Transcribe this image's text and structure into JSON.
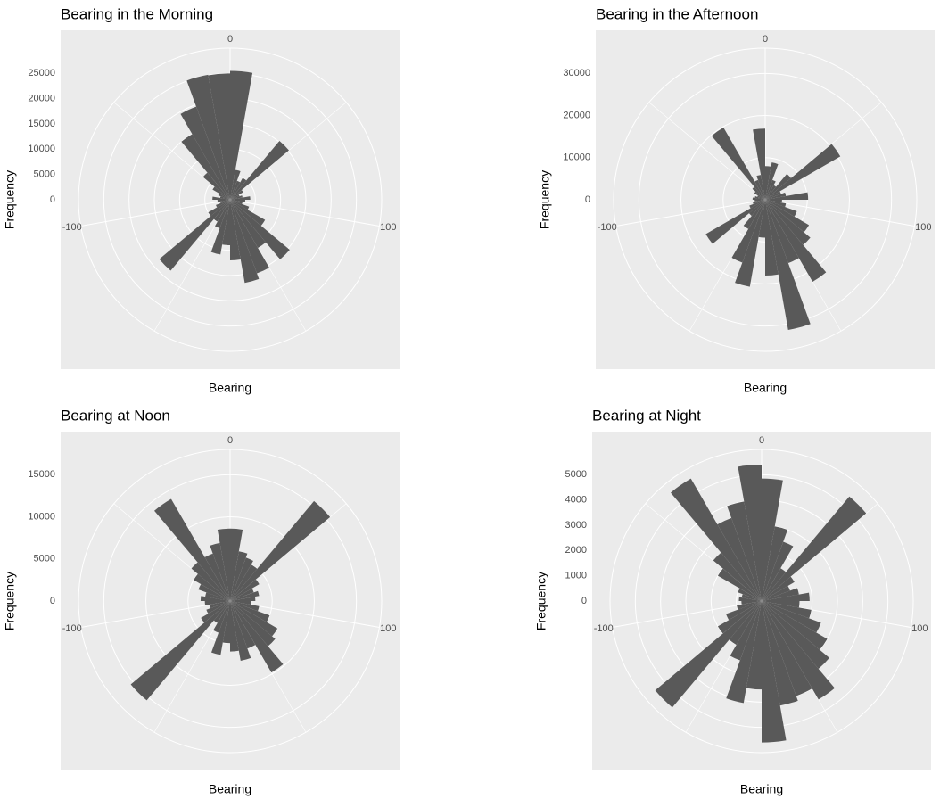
{
  "chart_data": [
    {
      "type": "polar-histogram",
      "title": "Bearing in the Morning",
      "xlabel": "Bearing",
      "ylabel": "Frequency",
      "color": "#595959",
      "bins": [
        -180,
        -170,
        -160,
        -150,
        -140,
        -130,
        -120,
        -110,
        -100,
        -90,
        -80,
        -70,
        -60,
        -50,
        -40,
        -30,
        -20,
        -10,
        0,
        10,
        20,
        30,
        40,
        50,
        60,
        70,
        80,
        90,
        100,
        110,
        120,
        130,
        140,
        150,
        160,
        170,
        180
      ],
      "values": [
        9000,
        11000,
        6000,
        5000,
        18300,
        5000,
        3000,
        2000,
        2500,
        3500,
        2000,
        2500,
        4000,
        7000,
        15000,
        19600,
        25100,
        25000,
        25500,
        6000,
        4000,
        5000,
        15200,
        3000,
        2000,
        2500,
        4000,
        3000,
        2500,
        4000,
        8000,
        15400,
        11000,
        15500,
        16700,
        12000
      ],
      "xlim": [
        -180,
        180
      ],
      "xticks": [
        -100,
        0,
        100
      ],
      "x_minor_ticks": [
        -150,
        -50,
        50,
        150
      ],
      "ylim": [
        0,
        30000
      ],
      "yticks": [
        0,
        5000,
        10000,
        15000,
        20000,
        25000
      ]
    },
    {
      "type": "polar-histogram",
      "title": "Bearing in the Afternoon",
      "xlabel": "Bearing",
      "ylabel": "Frequency",
      "color": "#595959",
      "bins": [
        -180,
        -170,
        -160,
        -150,
        -140,
        -130,
        -120,
        -110,
        -100,
        -90,
        -80,
        -70,
        -60,
        -50,
        -40,
        -30,
        -20,
        -10,
        0,
        10,
        20,
        30,
        40,
        50,
        60,
        70,
        80,
        90,
        100,
        110,
        120,
        130,
        140,
        150,
        160,
        170,
        180
      ],
      "values": [
        9000,
        21000,
        15900,
        8000,
        5000,
        16300,
        4000,
        3000,
        2500,
        3000,
        2500,
        2000,
        3000,
        4000,
        19800,
        5000,
        6000,
        16900,
        8000,
        9000,
        5000,
        4000,
        8000,
        20600,
        4000,
        5000,
        10200,
        4000,
        5000,
        8000,
        12000,
        14000,
        22500,
        16000,
        31400,
        18000
      ],
      "xlim": [
        -180,
        180
      ],
      "xticks": [
        -100,
        0,
        100
      ],
      "x_minor_ticks": [
        -150,
        -50,
        50,
        150
      ],
      "ylim": [
        0,
        36000
      ],
      "yticks": [
        0,
        10000,
        20000,
        30000
      ]
    },
    {
      "type": "polar-histogram",
      "title": "Bearing at Noon",
      "xlabel": "Bearing",
      "ylabel": "Frequency",
      "color": "#595959",
      "bins": [
        -180,
        -170,
        -160,
        -150,
        -140,
        -130,
        -120,
        -110,
        -100,
        -90,
        -80,
        -70,
        -60,
        -50,
        -40,
        -30,
        -20,
        -10,
        0,
        10,
        20,
        30,
        40,
        50,
        60,
        70,
        80,
        90,
        100,
        110,
        120,
        130,
        140,
        150,
        160,
        170,
        180
      ],
      "values": [
        5000,
        6500,
        4000,
        3000,
        15400,
        4000,
        3000,
        2500,
        3000,
        3500,
        3000,
        4000,
        5000,
        6000,
        14000,
        6000,
        7000,
        8600,
        8600,
        6000,
        5500,
        5000,
        15500,
        4000,
        3000,
        3500,
        3000,
        2500,
        3500,
        5000,
        6500,
        7000,
        9800,
        6000,
        7200,
        6000
      ],
      "xlim": [
        -180,
        180
      ],
      "xticks": [
        -100,
        0,
        100
      ],
      "x_minor_ticks": [
        -150,
        -50,
        50,
        150
      ],
      "ylim": [
        0,
        18000
      ],
      "yticks": [
        0,
        5000,
        10000,
        15000
      ]
    },
    {
      "type": "polar-histogram",
      "title": "Bearing at Night",
      "xlabel": "Bearing",
      "ylabel": "Frequency",
      "color": "#595959",
      "bins": [
        -180,
        -170,
        -160,
        -150,
        -140,
        -130,
        -120,
        -110,
        -100,
        -90,
        -80,
        -70,
        -60,
        -50,
        -40,
        -30,
        -20,
        -10,
        0,
        10,
        20,
        30,
        40,
        50,
        60,
        70,
        80,
        90,
        100,
        110,
        120,
        130,
        140,
        150,
        160,
        170,
        180
      ],
      "values": [
        3500,
        4100,
        2500,
        2000,
        5500,
        2000,
        1500,
        1000,
        800,
        900,
        800,
        1000,
        2000,
        2500,
        5600,
        3500,
        4000,
        5400,
        4850,
        3000,
        2500,
        1500,
        5400,
        1500,
        1200,
        1500,
        1900,
        1500,
        2000,
        2500,
        3000,
        3500,
        4500,
        4000,
        4200,
        5600
      ],
      "xlim": [
        -180,
        180
      ],
      "xticks": [
        -100,
        0,
        100
      ],
      "x_minor_ticks": [
        -150,
        -50,
        50,
        150
      ],
      "ylim": [
        0,
        6000
      ],
      "yticks": [
        0,
        1000,
        2000,
        3000,
        4000,
        5000
      ]
    }
  ]
}
